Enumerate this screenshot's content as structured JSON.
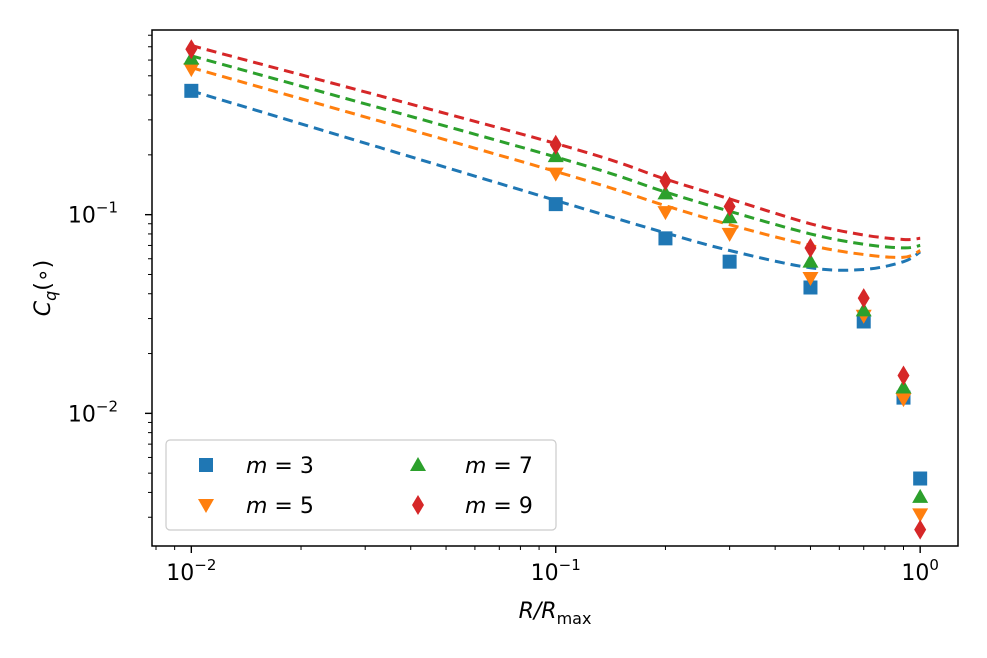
{
  "chart_data": {
    "type": "scatter",
    "title": "",
    "xlabel": "R/R_max",
    "ylabel": "C_q(∘)",
    "xscale": "log",
    "yscale": "log",
    "xlim": [
      0.0078,
      1.27
    ],
    "ylim": [
      0.00215,
      0.85
    ],
    "grid": false,
    "x_ticks": [
      {
        "value": 0.01,
        "base": "10",
        "exp": "−2"
      },
      {
        "value": 0.1,
        "base": "10",
        "exp": "−1"
      },
      {
        "value": 1,
        "base": "10",
        "exp": "0"
      }
    ],
    "y_ticks": [
      {
        "value": 0.01,
        "base": "10",
        "exp": "−2"
      },
      {
        "value": 0.1,
        "base": "10",
        "exp": "−1"
      }
    ],
    "legend_position": "lower-left",
    "x": [
      0.01,
      0.1,
      0.2,
      0.3,
      0.5,
      0.7,
      0.9,
      1.0
    ],
    "series": [
      {
        "name": "m = 3",
        "m": "3",
        "marker": "square",
        "color": "#1f77b4",
        "values": [
          0.42,
          0.113,
          0.076,
          0.058,
          0.043,
          0.029,
          0.012,
          0.0047
        ],
        "fit_values": [
          0.42,
          0.118,
          0.081,
          0.066,
          0.054,
          0.053,
          0.058,
          0.065
        ]
      },
      {
        "name": "m = 5",
        "m": "5",
        "marker": "triangle-down",
        "color": "#ff7f0e",
        "values": [
          0.54,
          0.161,
          0.103,
          0.08,
          0.048,
          0.031,
          0.0118,
          0.0031
        ],
        "fit_values": [
          0.55,
          0.165,
          0.111,
          0.089,
          0.07,
          0.063,
          0.061,
          0.066
        ]
      },
      {
        "name": "m = 7",
        "m": "7",
        "marker": "triangle-up",
        "color": "#2ca02c",
        "values": [
          0.61,
          0.197,
          0.128,
          0.097,
          0.058,
          0.033,
          0.0135,
          0.0038
        ],
        "fit_values": [
          0.63,
          0.195,
          0.13,
          0.104,
          0.08,
          0.071,
          0.068,
          0.07
        ]
      },
      {
        "name": "m = 9",
        "m": "9",
        "marker": "diamond",
        "color": "#d62728",
        "values": [
          0.68,
          0.225,
          0.148,
          0.11,
          0.068,
          0.038,
          0.0155,
          0.0026
        ],
        "fit_values": [
          0.71,
          0.228,
          0.151,
          0.12,
          0.09,
          0.079,
          0.075,
          0.076
        ]
      }
    ]
  }
}
